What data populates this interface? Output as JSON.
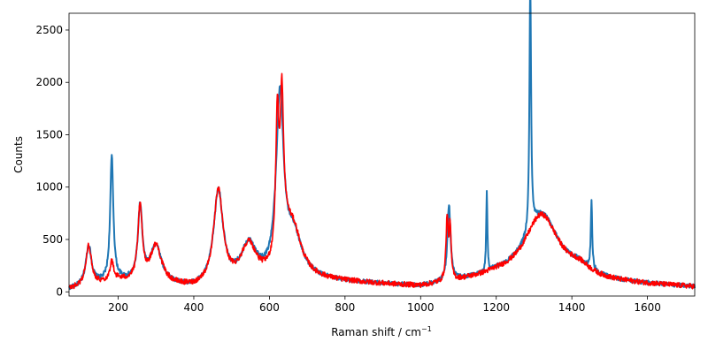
{
  "chart_data": {
    "type": "line",
    "title": "",
    "xlabel": "Raman shift / cm",
    "xlabel_superscript": "−1",
    "ylabel": "Counts",
    "xlim": [
      70,
      1725
    ],
    "ylim": [
      -40,
      2660
    ],
    "xticks": [
      200,
      400,
      600,
      800,
      1000,
      1200,
      1400,
      1600
    ],
    "yticks": [
      0,
      500,
      1000,
      1500,
      2000,
      2500
    ],
    "grid": false,
    "legend": "none",
    "series": [
      {
        "color": "#1f77b4",
        "noise": 20,
        "peaks": [
          [
            122,
            380,
            9
          ],
          [
            183,
            1180,
            5
          ],
          [
            258,
            700,
            7
          ],
          [
            300,
            360,
            18
          ],
          [
            465,
            890,
            15
          ],
          [
            545,
            350,
            25
          ],
          [
            628,
            1710,
            12
          ],
          [
            665,
            380,
            25
          ],
          [
            1075,
            720,
            5
          ],
          [
            1175,
            770,
            1.8
          ],
          [
            1290,
            2400,
            2.5
          ],
          [
            1452,
            650,
            2.2
          ],
          [
            1320,
            620,
            55
          ],
          [
            1420,
            80,
            35
          ]
        ],
        "baseline": [
          [
            70,
            20
          ],
          [
            200,
            100
          ],
          [
            400,
            25
          ],
          [
            700,
            110
          ],
          [
            1000,
            40
          ],
          [
            1200,
            130
          ],
          [
            1725,
            40
          ]
        ]
      },
      {
        "color": "#ff0000",
        "noise": 25,
        "peaks": [
          [
            122,
            380,
            9
          ],
          [
            183,
            180,
            6
          ],
          [
            258,
            700,
            7
          ],
          [
            300,
            360,
            18
          ],
          [
            465,
            890,
            15
          ],
          [
            545,
            350,
            25
          ],
          [
            621,
            1290,
            5
          ],
          [
            633,
            1290,
            5
          ],
          [
            640,
            350,
            20
          ],
          [
            665,
            380,
            25
          ],
          [
            1070,
            580,
            3.5
          ],
          [
            1078,
            500,
            3
          ],
          [
            1320,
            620,
            55
          ],
          [
            1420,
            80,
            35
          ]
        ],
        "baseline": [
          [
            70,
            20
          ],
          [
            200,
            100
          ],
          [
            400,
            25
          ],
          [
            700,
            110
          ],
          [
            1000,
            40
          ],
          [
            1200,
            130
          ],
          [
            1725,
            40
          ]
        ]
      }
    ]
  }
}
